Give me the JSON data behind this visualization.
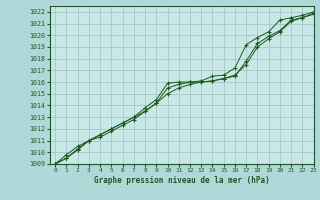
{
  "title": "Graphe pression niveau de la mer (hPa)",
  "bg_color": "#b0d8d8",
  "plot_bg_color": "#c8e8e8",
  "grid_color": "#a0c0c0",
  "line_color": "#1a5c1a",
  "marker_color": "#1a5c1a",
  "xlim": [
    -0.5,
    23
  ],
  "ylim": [
    1009,
    1022.5
  ],
  "xticks": [
    0,
    1,
    2,
    3,
    4,
    5,
    6,
    7,
    8,
    9,
    10,
    11,
    12,
    13,
    14,
    15,
    16,
    17,
    18,
    19,
    20,
    21,
    22,
    23
  ],
  "yticks": [
    1009,
    1010,
    1011,
    1012,
    1013,
    1014,
    1015,
    1016,
    1017,
    1018,
    1019,
    1020,
    1021,
    1022
  ],
  "series1_x": [
    0,
    1,
    2,
    3,
    4,
    5,
    6,
    7,
    8,
    9,
    10,
    11,
    12,
    13,
    14,
    15,
    16,
    17,
    18,
    19,
    20,
    21,
    22,
    23
  ],
  "series1_y": [
    1009.0,
    1009.8,
    1010.5,
    1011.0,
    1011.5,
    1012.0,
    1012.5,
    1013.0,
    1013.8,
    1014.5,
    1015.9,
    1016.0,
    1016.0,
    1016.1,
    1016.5,
    1016.6,
    1017.2,
    1019.2,
    1019.8,
    1020.3,
    1021.3,
    1021.5,
    1021.7,
    1022.0
  ],
  "series2_x": [
    0,
    1,
    2,
    3,
    4,
    5,
    6,
    7,
    8,
    9,
    10,
    11,
    12,
    13,
    14,
    15,
    16,
    17,
    18,
    19,
    20,
    21,
    22,
    23
  ],
  "series2_y": [
    1009.0,
    1009.5,
    1010.3,
    1011.0,
    1011.5,
    1012.0,
    1012.5,
    1013.0,
    1013.5,
    1014.2,
    1015.0,
    1015.5,
    1015.8,
    1016.0,
    1016.1,
    1016.3,
    1016.6,
    1017.5,
    1019.0,
    1019.7,
    1020.3,
    1021.2,
    1021.5,
    1021.8
  ],
  "series3_x": [
    0,
    1,
    2,
    3,
    4,
    5,
    6,
    7,
    8,
    9,
    10,
    11,
    12,
    13,
    14,
    15,
    16,
    17,
    18,
    19,
    20,
    21,
    22,
    23
  ],
  "series3_y": [
    1009.0,
    1009.5,
    1010.2,
    1011.0,
    1011.3,
    1011.8,
    1012.3,
    1012.8,
    1013.5,
    1014.2,
    1015.5,
    1015.8,
    1016.0,
    1016.0,
    1016.1,
    1016.3,
    1016.5,
    1017.8,
    1019.3,
    1019.9,
    1020.4,
    1021.3,
    1021.5,
    1021.9
  ]
}
